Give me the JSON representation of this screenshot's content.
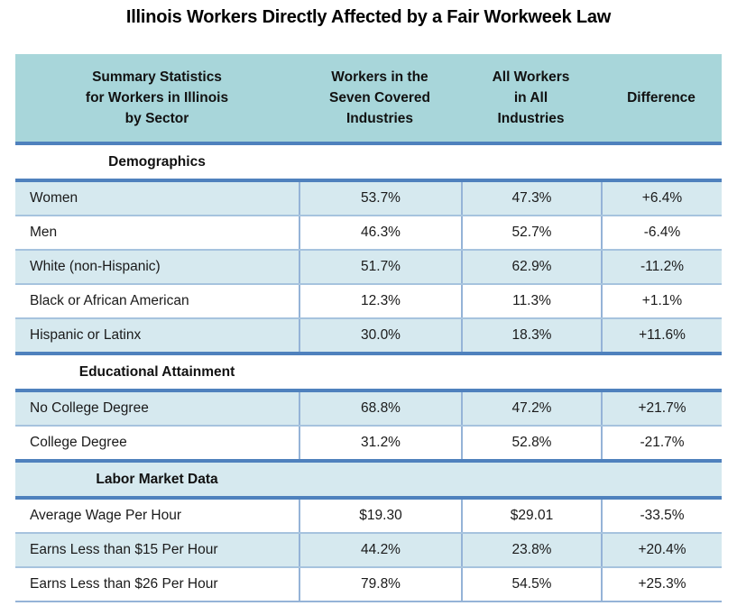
{
  "chart_data": {
    "type": "table",
    "title": "Illinois Workers Directly Affected by a Fair Workweek Law",
    "columns": [
      "Summary Statistics\nfor Workers in Illinois\nby Sector",
      "Workers in the\nSeven Covered\nIndustries",
      "All Workers\nin All\nIndustries",
      "Difference"
    ],
    "sections": [
      {
        "heading": "Demographics",
        "rows": [
          {
            "cells": [
              "Women",
              "53.7%",
              "47.3%",
              "+6.4%"
            ]
          },
          {
            "cells": [
              "Men",
              "46.3%",
              "52.7%",
              "-6.4%"
            ]
          },
          {
            "cells": [
              "White (non-Hispanic)",
              "51.7%",
              "62.9%",
              "-11.2%"
            ]
          },
          {
            "cells": [
              "Black or African American",
              "12.3%",
              "11.3%",
              "+1.1%"
            ]
          },
          {
            "cells": [
              "Hispanic or Latinx",
              "30.0%",
              "18.3%",
              "+11.6%"
            ]
          }
        ]
      },
      {
        "heading": "Educational Attainment",
        "rows": [
          {
            "cells": [
              "No College Degree",
              "68.8%",
              "47.2%",
              "+21.7%"
            ]
          },
          {
            "cells": [
              "College Degree",
              "31.2%",
              "52.8%",
              "-21.7%"
            ]
          }
        ]
      },
      {
        "heading": "Labor Market Data",
        "rows": [
          {
            "cells": [
              "Average Wage Per Hour",
              "$19.30",
              "$29.01",
              "-33.5%"
            ]
          },
          {
            "cells": [
              "Earns Less than $15 Per Hour",
              "44.2%",
              "23.8%",
              "+20.4%"
            ]
          },
          {
            "cells": [
              "Earns Less than $26 Per Hour",
              "79.8%",
              "54.5%",
              "+25.3%"
            ]
          }
        ]
      }
    ],
    "layout": {
      "grid": "banded-rows",
      "legend": "none",
      "section_headings_centered_in_first_column": true
    },
    "colors": {
      "header_bg": "#a8d6da",
      "band_bg": "#d6e9ef",
      "accent_line": "#4f81bd",
      "divider": "#95b3d7",
      "title_text": "#000000",
      "body_text": "#1a1a1a"
    }
  }
}
